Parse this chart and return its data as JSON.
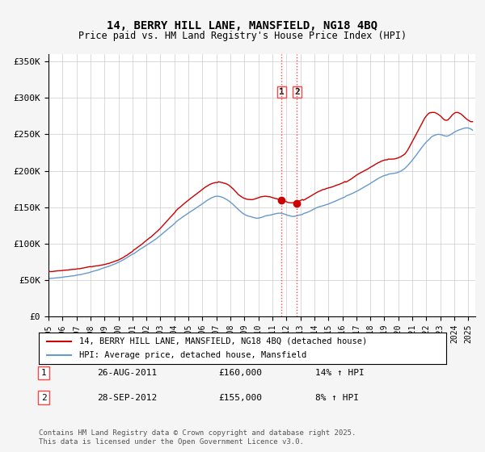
{
  "title": "14, BERRY HILL LANE, MANSFIELD, NG18 4BQ",
  "subtitle": "Price paid vs. HM Land Registry's House Price Index (HPI)",
  "legend_label_red": "14, BERRY HILL LANE, MANSFIELD, NG18 4BQ (detached house)",
  "legend_label_blue": "HPI: Average price, detached house, Mansfield",
  "footnote": "Contains HM Land Registry data © Crown copyright and database right 2025.\nThis data is licensed under the Open Government Licence v3.0.",
  "transactions": [
    {
      "label": "1",
      "date": "26-AUG-2011",
      "price": "£160,000",
      "hpi": "14% ↑ HPI",
      "year": 2011.65
    },
    {
      "label": "2",
      "date": "28-SEP-2012",
      "price": "£155,000",
      "hpi": "8% ↑ HPI",
      "year": 2012.75
    }
  ],
  "vline_color": "#ff4444",
  "vline_style": "dotted",
  "red_line_color": "#cc0000",
  "blue_line_color": "#6699cc",
  "background_color": "#f5f5f5",
  "plot_bg_color": "#ffffff",
  "grid_color": "#cccccc",
  "ylim": [
    0,
    360000
  ],
  "xlim_start": 1995,
  "xlim_end": 2025.5,
  "yticks": [
    0,
    50000,
    100000,
    150000,
    200000,
    250000,
    300000,
    350000
  ],
  "ytick_labels": [
    "£0",
    "£50K",
    "£100K",
    "£150K",
    "£200K",
    "£250K",
    "£300K",
    "£350K"
  ],
  "xticks": [
    1995,
    1996,
    1997,
    1998,
    1999,
    2000,
    2001,
    2002,
    2003,
    2004,
    2005,
    2006,
    2007,
    2008,
    2009,
    2010,
    2011,
    2012,
    2013,
    2014,
    2015,
    2016,
    2017,
    2018,
    2019,
    2020,
    2021,
    2022,
    2023,
    2024,
    2025
  ]
}
